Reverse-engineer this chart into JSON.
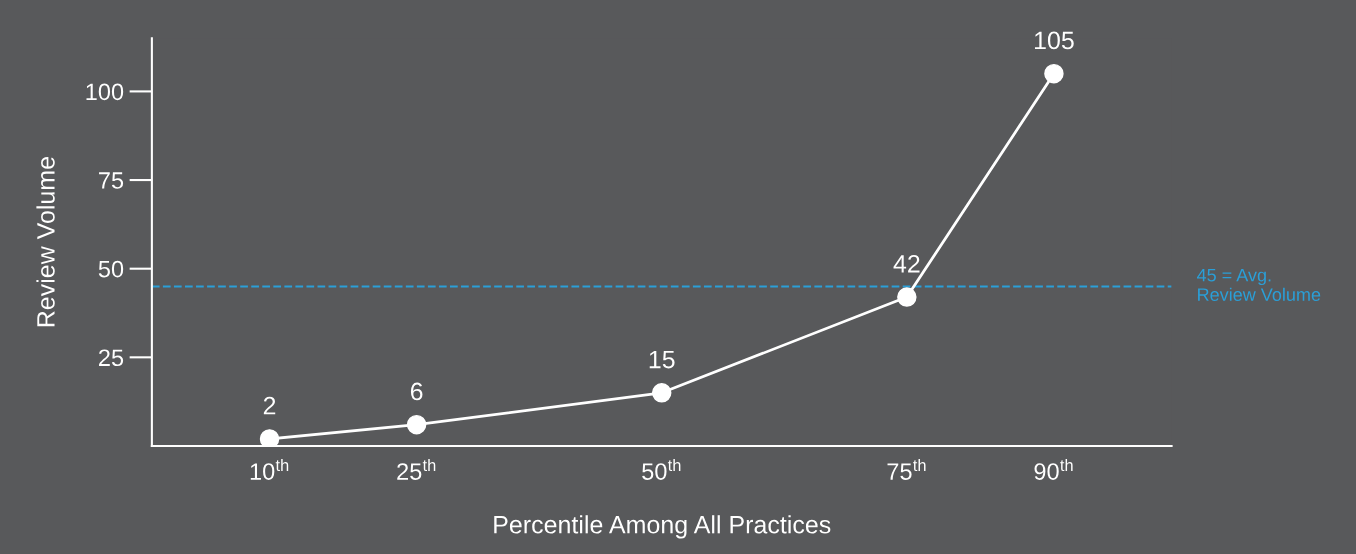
{
  "chart_data": {
    "type": "line",
    "xlabel": "Percentile Among All Practices",
    "ylabel": "Review Volume",
    "x": [
      10,
      25,
      50,
      75,
      90
    ],
    "series": [
      {
        "color": "#ffffff",
        "values": [
          2,
          6,
          15,
          42,
          105
        ]
      }
    ],
    "data_labels": true,
    "marker": "circle",
    "line_style": "solid",
    "grid": false,
    "legend": false,
    "xlim": [
      -2,
      102
    ],
    "xticks": [
      {
        "value": 10,
        "label": "10$^{th}$"
      },
      {
        "value": 25,
        "label": "25$^{th}$"
      },
      {
        "value": 50,
        "label": "50$^{th}$"
      },
      {
        "value": 75,
        "label": "75$^{th}$"
      },
      {
        "value": 90,
        "label": "90$^{th}$"
      }
    ],
    "ylim": [
      0,
      115
    ],
    "yticks": [
      25,
      50,
      75,
      100
    ],
    "ref_lines": [
      {
        "axis": "y",
        "value": 45,
        "label": "45 = Avg.\nReview Volume",
        "color": "#2a9fd8",
        "line_style": "dashed"
      }
    ]
  }
}
